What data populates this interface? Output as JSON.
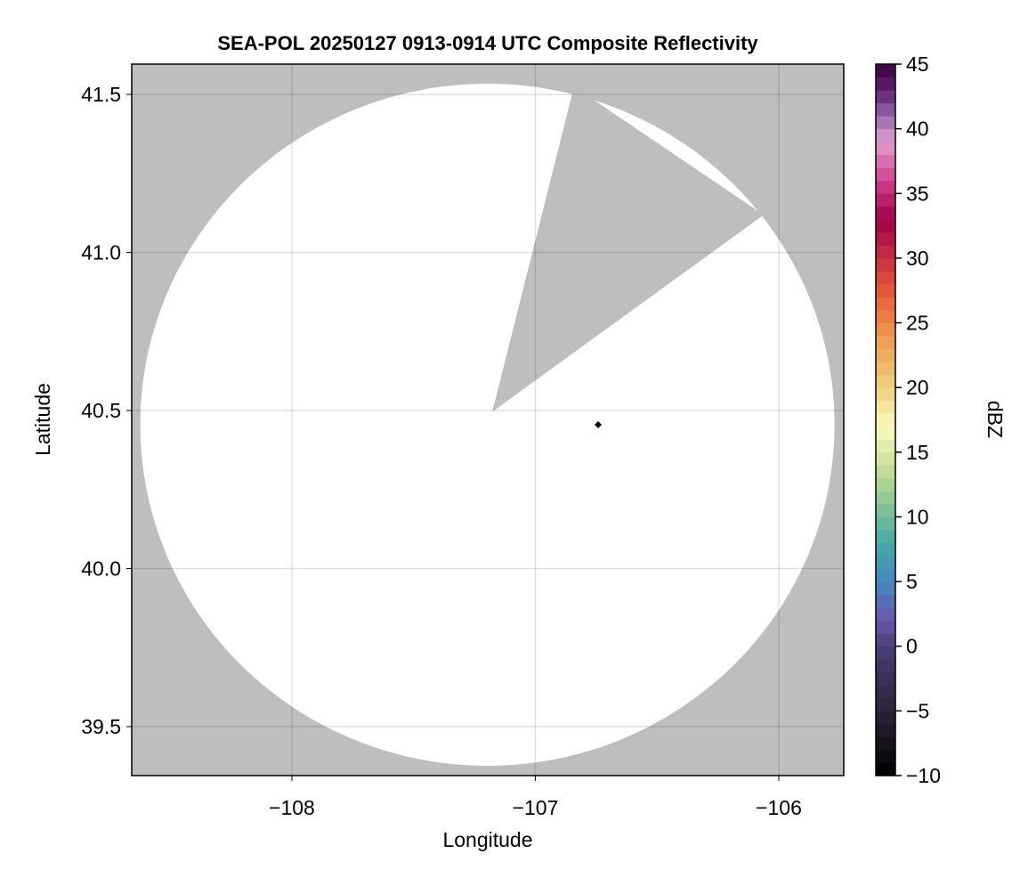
{
  "chart_data": {
    "type": "heatmap",
    "title": "SEA-POL 20250127 0913-0914 UTC Composite Reflectivity",
    "xlabel": "Longitude",
    "ylabel": "Latitude",
    "xlim": [
      -108.658,
      -105.733
    ],
    "ylim": [
      39.345,
      41.596
    ],
    "xticks": [
      -108,
      -107,
      -106
    ],
    "xtick_labels": [
      "−108",
      "−107",
      "−106"
    ],
    "yticks": [
      39.5,
      40.0,
      40.5,
      41.0,
      41.5
    ],
    "ytick_labels": [
      "39.5",
      "40.0",
      "40.5",
      "41.0",
      "41.5"
    ],
    "grid": true,
    "missing_color": "#bebebe",
    "coverage_color": "#ffffff",
    "radar_coverage": {
      "center_lon": -107.197,
      "center_lat": 40.455,
      "radius_lon": 1.426,
      "radius_lat": 1.079
    },
    "no_data_wedge": [
      [
        -107.177,
        40.496
      ],
      [
        -106.841,
        41.525
      ],
      [
        -106.062,
        41.119
      ]
    ],
    "markers": [
      {
        "lon": -106.742,
        "lat": 40.455,
        "color": "#000000"
      }
    ],
    "colorbar": {
      "label": "dBZ",
      "range": [
        -10,
        45
      ],
      "step": 1,
      "ticks": [
        -10,
        -5,
        0,
        5,
        10,
        15,
        20,
        25,
        30,
        35,
        40,
        45
      ],
      "tick_labels": [
        "−10",
        "−5",
        "0",
        "5",
        "10",
        "15",
        "20",
        "25",
        "30",
        "35",
        "40",
        "45"
      ],
      "color_anchors": [
        [
          -10,
          "#000000"
        ],
        [
          -5,
          "#2a2438"
        ],
        [
          0,
          "#4a3d7a"
        ],
        [
          2,
          "#6a58aa"
        ],
        [
          5,
          "#4488c0"
        ],
        [
          8,
          "#48a8a8"
        ],
        [
          10,
          "#70bc98"
        ],
        [
          13,
          "#b8d890"
        ],
        [
          17,
          "#fafabc"
        ],
        [
          20,
          "#f0d080"
        ],
        [
          24,
          "#ec9a50"
        ],
        [
          27,
          "#e86038"
        ],
        [
          30,
          "#c83040"
        ],
        [
          33,
          "#a00048"
        ],
        [
          36,
          "#d04090"
        ],
        [
          39,
          "#e0a0d0"
        ],
        [
          41,
          "#9868b0"
        ],
        [
          43,
          "#602070"
        ],
        [
          45,
          "#3a0040"
        ]
      ]
    }
  }
}
